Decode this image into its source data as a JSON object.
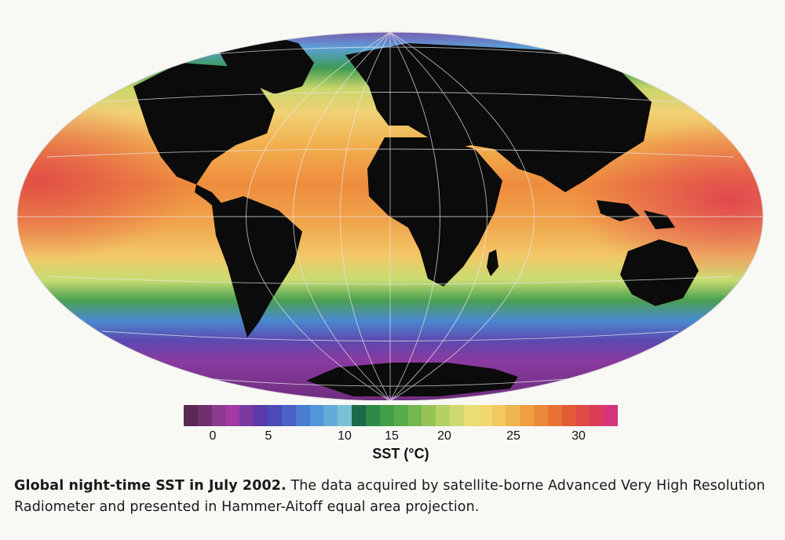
{
  "map": {
    "projection": "Hammer-Aitoff",
    "land_color": "#0b0b0b",
    "graticule_color": "#e8e8e8"
  },
  "colorbar": {
    "title": "SST (°C)",
    "ticks": [
      "0",
      "5",
      "10",
      "15",
      "20",
      "25",
      "30"
    ],
    "colors": [
      "#5a2a55",
      "#6e2f6e",
      "#8a3b8e",
      "#a23aa6",
      "#7a3aa0",
      "#5a3aa8",
      "#4a4ab8",
      "#4a62c4",
      "#4a7cd0",
      "#5096d8",
      "#64acd8",
      "#7cc0d8",
      "#1d6b4a",
      "#2e8a48",
      "#3f9e46",
      "#58ac4a",
      "#74b84e",
      "#94c458",
      "#b4d264",
      "#d0d870",
      "#e8de74",
      "#f2d870",
      "#f2c860",
      "#f0b650",
      "#eea040",
      "#ea8a38",
      "#e67234",
      "#e25a36",
      "#de4a44",
      "#da3c5a",
      "#d6347a"
    ]
  },
  "caption": {
    "title": "Global night-time SST in July 2002.",
    "body": "The data acquired by satellite-borne Advanced Very High Resolution Radiometer and presented in Hammer-Aitoff equal area projection."
  }
}
